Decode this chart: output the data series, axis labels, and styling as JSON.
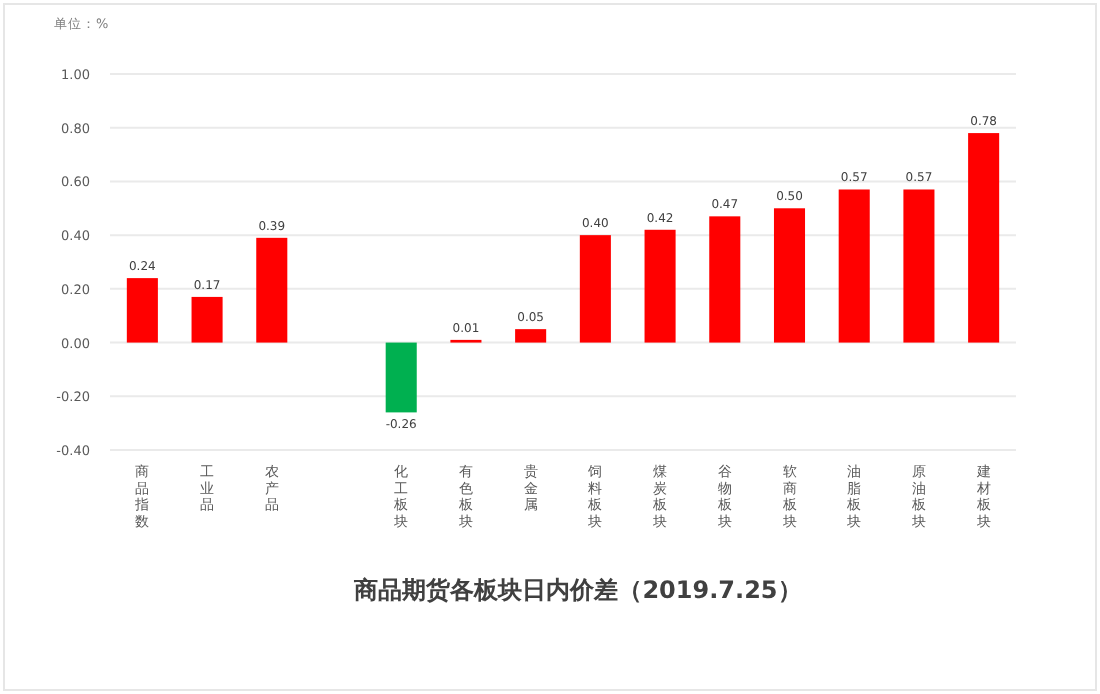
{
  "chart_data": {
    "type": "bar",
    "title": "商品期货各板块日内价差（2019.7.25）",
    "ylabel": "单位：%",
    "categories": [
      "商品指数",
      "工业品",
      "农产品",
      null,
      "化工板块",
      "有色板块",
      "贵金属",
      "饲料板块",
      "煤炭板块",
      "谷物板块",
      "软商板块",
      "油脂板块",
      "原油板块",
      "建材板块"
    ],
    "values": [
      0.24,
      0.17,
      0.39,
      null,
      -0.26,
      0.01,
      0.05,
      0.4,
      0.42,
      0.47,
      0.5,
      0.57,
      0.57,
      0.78
    ],
    "colors": [
      "#ff0000",
      "#ff0000",
      "#ff0000",
      null,
      "#00b050",
      "#ff0000",
      "#ff0000",
      "#ff0000",
      "#ff0000",
      "#ff0000",
      "#ff0000",
      "#ff0000",
      "#ff0000",
      "#ff0000"
    ],
    "ylim": [
      -0.4,
      1.0
    ],
    "yticks": [
      {
        "value": -0.4,
        "label": "-0.40"
      },
      {
        "value": -0.2,
        "label": "-0.20"
      },
      {
        "value": 0,
        "label": "0.00"
      },
      {
        "value": 0.2,
        "label": "0.20"
      },
      {
        "value": 0.4,
        "label": "0.40"
      },
      {
        "value": 0.6,
        "label": "0.60"
      },
      {
        "value": 0.8,
        "label": "0.80"
      },
      {
        "value": 1.0,
        "label": "1.00"
      }
    ],
    "value_labels": [
      "0.24",
      "0.17",
      "0.39",
      null,
      "-0.26",
      "0.01",
      "0.05",
      "0.40",
      "0.42",
      "0.47",
      "0.50",
      "0.57",
      "0.57",
      "0.78"
    ],
    "grid": "y"
  }
}
